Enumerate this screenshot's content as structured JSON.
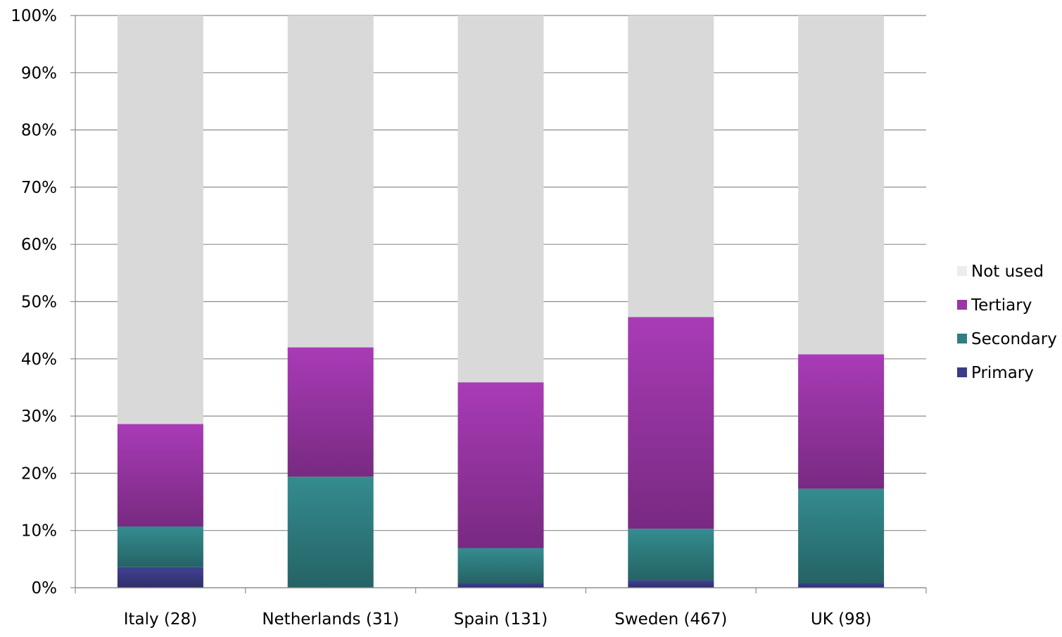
{
  "chart_data": {
    "type": "bar",
    "stacked": true,
    "normalized": true,
    "title": "",
    "xlabel": "",
    "ylabel": "",
    "ylim": [
      0,
      100
    ],
    "y_ticks": [
      "0%",
      "10%",
      "20%",
      "30%",
      "40%",
      "50%",
      "60%",
      "70%",
      "80%",
      "90%",
      "100%"
    ],
    "y_tick_values": [
      0,
      10,
      20,
      30,
      40,
      50,
      60,
      70,
      80,
      90,
      100
    ],
    "grid": true,
    "legend_position": "right",
    "categories": [
      "Italy (28)",
      "Netherlands (31)",
      "Spain (131)",
      "Sweden (467)",
      "UK (98)"
    ],
    "series": [
      {
        "name": "Primary",
        "color": "#3b3b86",
        "values": [
          3.6,
          0.0,
          0.8,
          1.3,
          0.8
        ]
      },
      {
        "name": "Secondary",
        "color": "#2f7f82",
        "values": [
          7.1,
          19.4,
          6.1,
          9.0,
          16.5
        ]
      },
      {
        "name": "Tertiary",
        "color": "#9a36a6",
        "values": [
          17.9,
          22.6,
          29.0,
          37.0,
          23.5
        ]
      },
      {
        "name": "Not used",
        "color": "#d9d9d9",
        "values": [
          71.4,
          58.0,
          64.1,
          52.7,
          59.2
        ]
      }
    ],
    "legend_order": [
      "Not used",
      "Tertiary",
      "Secondary",
      "Primary"
    ]
  }
}
